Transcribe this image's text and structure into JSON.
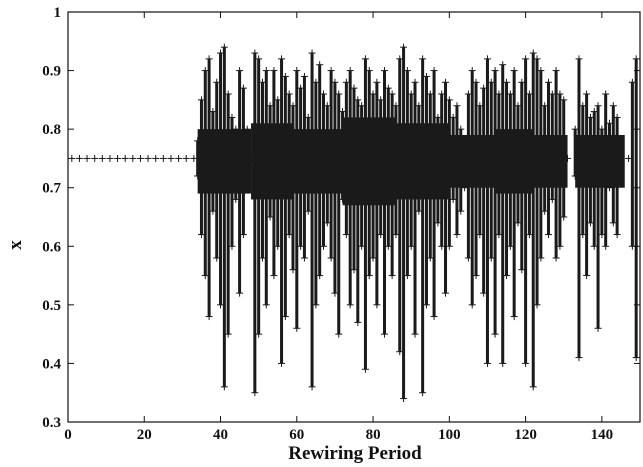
{
  "chart_data": {
    "type": "scatter",
    "marker": "+",
    "marker_color": "#1a1a1a",
    "title": "",
    "xlabel": "Rewiring Period",
    "ylabel": "x",
    "xlim": [
      0,
      150
    ],
    "ylim": [
      0.3,
      1.0
    ],
    "xticks": [
      0,
      20,
      40,
      60,
      80,
      100,
      120,
      140
    ],
    "yticks": [
      0.3,
      0.4,
      0.5,
      0.6,
      0.7,
      0.8,
      0.9,
      1.0
    ],
    "ytick_labels": [
      "0.3",
      "0.4",
      "0.5",
      "0.6",
      "0.7",
      "0.8",
      "0.9",
      "1"
    ],
    "grid": false,
    "legend": "none",
    "fixed_point_region": {
      "x": [
        0,
        33
      ],
      "y": 0.75
    },
    "series": [
      {
        "points": [
          [
            1,
            0.75
          ],
          [
            3,
            0.75
          ],
          [
            5,
            0.75
          ],
          [
            7,
            0.75
          ],
          [
            9,
            0.75
          ],
          [
            11,
            0.75
          ],
          [
            13,
            0.75
          ],
          [
            15,
            0.75
          ],
          [
            17,
            0.75
          ],
          [
            19,
            0.75
          ],
          [
            21,
            0.75
          ],
          [
            23,
            0.75
          ],
          [
            25,
            0.75
          ],
          [
            27,
            0.75
          ],
          [
            29,
            0.75
          ],
          [
            31,
            0.75
          ],
          [
            33,
            0.75
          ],
          [
            34,
            0.72
          ],
          [
            34,
            0.78
          ],
          [
            35,
            0.62
          ],
          [
            35,
            0.85
          ],
          [
            36,
            0.55
          ],
          [
            36,
            0.9
          ],
          [
            37,
            0.48
          ],
          [
            37,
            0.92
          ],
          [
            38,
            0.66
          ],
          [
            38,
            0.83
          ],
          [
            39,
            0.58
          ],
          [
            39,
            0.88
          ],
          [
            40,
            0.5
          ],
          [
            40,
            0.93
          ],
          [
            41,
            0.36
          ],
          [
            41,
            0.94
          ],
          [
            42,
            0.45
          ],
          [
            42,
            0.86
          ],
          [
            43,
            0.6
          ],
          [
            43,
            0.82
          ],
          [
            44,
            0.68
          ],
          [
            44,
            0.8
          ],
          [
            45,
            0.52
          ],
          [
            45,
            0.9
          ],
          [
            46,
            0.62
          ],
          [
            46,
            0.87
          ],
          [
            47,
            0.72
          ],
          [
            47,
            0.8
          ],
          [
            48,
            0.75
          ],
          [
            49,
            0.35
          ],
          [
            49,
            0.93
          ],
          [
            50,
            0.45
          ],
          [
            50,
            0.92
          ],
          [
            51,
            0.58
          ],
          [
            51,
            0.88
          ],
          [
            52,
            0.5
          ],
          [
            52,
            0.9
          ],
          [
            53,
            0.65
          ],
          [
            53,
            0.84
          ],
          [
            54,
            0.55
          ],
          [
            54,
            0.9
          ],
          [
            55,
            0.6
          ],
          [
            55,
            0.85
          ],
          [
            56,
            0.4
          ],
          [
            56,
            0.92
          ],
          [
            57,
            0.48
          ],
          [
            57,
            0.89
          ],
          [
            58,
            0.62
          ],
          [
            58,
            0.86
          ],
          [
            59,
            0.56
          ],
          [
            59,
            0.84
          ],
          [
            60,
            0.46
          ],
          [
            60,
            0.9
          ],
          [
            61,
            0.6
          ],
          [
            61,
            0.87
          ],
          [
            62,
            0.58
          ],
          [
            62,
            0.89
          ],
          [
            63,
            0.66
          ],
          [
            63,
            0.82
          ],
          [
            64,
            0.36
          ],
          [
            64,
            0.93
          ],
          [
            65,
            0.5
          ],
          [
            65,
            0.88
          ],
          [
            66,
            0.55
          ],
          [
            66,
            0.91
          ],
          [
            67,
            0.6
          ],
          [
            67,
            0.86
          ],
          [
            68,
            0.64
          ],
          [
            68,
            0.84
          ],
          [
            69,
            0.58
          ],
          [
            69,
            0.9
          ],
          [
            70,
            0.52
          ],
          [
            70,
            0.88
          ],
          [
            71,
            0.45
          ],
          [
            71,
            0.86
          ],
          [
            72,
            0.68
          ],
          [
            72,
            0.83
          ],
          [
            73,
            0.62
          ],
          [
            73,
            0.88
          ],
          [
            74,
            0.5
          ],
          [
            74,
            0.9
          ],
          [
            75,
            0.56
          ],
          [
            75,
            0.87
          ],
          [
            76,
            0.47
          ],
          [
            76,
            0.85
          ],
          [
            77,
            0.6
          ],
          [
            77,
            0.84
          ],
          [
            78,
            0.39
          ],
          [
            78,
            0.92
          ],
          [
            79,
            0.55
          ],
          [
            79,
            0.9
          ],
          [
            80,
            0.58
          ],
          [
            80,
            0.86
          ],
          [
            81,
            0.5
          ],
          [
            81,
            0.88
          ],
          [
            82,
            0.62
          ],
          [
            82,
            0.85
          ],
          [
            83,
            0.45
          ],
          [
            83,
            0.9
          ],
          [
            84,
            0.6
          ],
          [
            84,
            0.87
          ],
          [
            85,
            0.55
          ],
          [
            85,
            0.86
          ],
          [
            86,
            0.62
          ],
          [
            86,
            0.84
          ],
          [
            87,
            0.42
          ],
          [
            87,
            0.92
          ],
          [
            88,
            0.34
          ],
          [
            88,
            0.94
          ],
          [
            89,
            0.55
          ],
          [
            89,
            0.9
          ],
          [
            90,
            0.6
          ],
          [
            90,
            0.86
          ],
          [
            91,
            0.45
          ],
          [
            91,
            0.88
          ],
          [
            92,
            0.66
          ],
          [
            92,
            0.84
          ],
          [
            93,
            0.35
          ],
          [
            93,
            0.92
          ],
          [
            94,
            0.5
          ],
          [
            94,
            0.89
          ],
          [
            95,
            0.58
          ],
          [
            95,
            0.86
          ],
          [
            96,
            0.48
          ],
          [
            96,
            0.9
          ],
          [
            97,
            0.64
          ],
          [
            97,
            0.82
          ],
          [
            98,
            0.6
          ],
          [
            98,
            0.86
          ],
          [
            99,
            0.52
          ],
          [
            99,
            0.88
          ],
          [
            100,
            0.6
          ],
          [
            100,
            0.85
          ],
          [
            101,
            0.68
          ],
          [
            101,
            0.82
          ],
          [
            102,
            0.62
          ],
          [
            102,
            0.84
          ],
          [
            103,
            0.66
          ],
          [
            103,
            0.8
          ],
          [
            104,
            0.7
          ],
          [
            104,
            0.78
          ],
          [
            105,
            0.58
          ],
          [
            105,
            0.86
          ],
          [
            106,
            0.5
          ],
          [
            106,
            0.9
          ],
          [
            107,
            0.55
          ],
          [
            107,
            0.88
          ],
          [
            108,
            0.62
          ],
          [
            108,
            0.84
          ],
          [
            109,
            0.52
          ],
          [
            109,
            0.87
          ],
          [
            110,
            0.4
          ],
          [
            110,
            0.92
          ],
          [
            111,
            0.58
          ],
          [
            111,
            0.88
          ],
          [
            112,
            0.45
          ],
          [
            112,
            0.9
          ],
          [
            113,
            0.62
          ],
          [
            113,
            0.86
          ],
          [
            114,
            0.4
          ],
          [
            114,
            0.91
          ],
          [
            115,
            0.55
          ],
          [
            115,
            0.88
          ],
          [
            116,
            0.6
          ],
          [
            116,
            0.86
          ],
          [
            117,
            0.48
          ],
          [
            117,
            0.9
          ],
          [
            118,
            0.64
          ],
          [
            118,
            0.84
          ],
          [
            119,
            0.56
          ],
          [
            119,
            0.88
          ],
          [
            120,
            0.4
          ],
          [
            120,
            0.92
          ],
          [
            121,
            0.62
          ],
          [
            121,
            0.86
          ],
          [
            122,
            0.36
          ],
          [
            122,
            0.93
          ],
          [
            123,
            0.5
          ],
          [
            123,
            0.92
          ],
          [
            124,
            0.58
          ],
          [
            124,
            0.9
          ],
          [
            125,
            0.66
          ],
          [
            125,
            0.84
          ],
          [
            126,
            0.62
          ],
          [
            126,
            0.88
          ],
          [
            127,
            0.68
          ],
          [
            127,
            0.86
          ],
          [
            128,
            0.58
          ],
          [
            128,
            0.9
          ],
          [
            129,
            0.6
          ],
          [
            129,
            0.86
          ],
          [
            130,
            0.65
          ],
          [
            130,
            0.85
          ],
          [
            131,
            0.75
          ],
          [
            133,
            0.72
          ],
          [
            133,
            0.8
          ],
          [
            134,
            0.41
          ],
          [
            134,
            0.92
          ],
          [
            135,
            0.62
          ],
          [
            135,
            0.84
          ],
          [
            136,
            0.55
          ],
          [
            136,
            0.86
          ],
          [
            137,
            0.64
          ],
          [
            137,
            0.82
          ],
          [
            138,
            0.6
          ],
          [
            138,
            0.83
          ],
          [
            139,
            0.46
          ],
          [
            139,
            0.84
          ],
          [
            140,
            0.62
          ],
          [
            140,
            0.8
          ],
          [
            141,
            0.6
          ],
          [
            141,
            0.86
          ],
          [
            142,
            0.7
          ],
          [
            142,
            0.81
          ],
          [
            143,
            0.64
          ],
          [
            143,
            0.84
          ],
          [
            144,
            0.62
          ],
          [
            144,
            0.82
          ],
          [
            145,
            0.75
          ],
          [
            147,
            0.75
          ],
          [
            148,
            0.6
          ],
          [
            148,
            0.88
          ],
          [
            149,
            0.41
          ],
          [
            149,
            0.92
          ]
        ],
        "bands": [
          [
            34,
            48,
            0.69,
            0.8
          ],
          [
            48,
            59,
            0.68,
            0.81
          ],
          [
            59,
            72,
            0.69,
            0.8
          ],
          [
            72,
            86,
            0.67,
            0.82
          ],
          [
            86,
            100,
            0.68,
            0.81
          ],
          [
            100,
            112,
            0.7,
            0.79
          ],
          [
            112,
            122,
            0.69,
            0.8
          ],
          [
            122,
            131,
            0.7,
            0.79
          ],
          [
            133,
            146,
            0.7,
            0.79
          ]
        ]
      }
    ]
  }
}
